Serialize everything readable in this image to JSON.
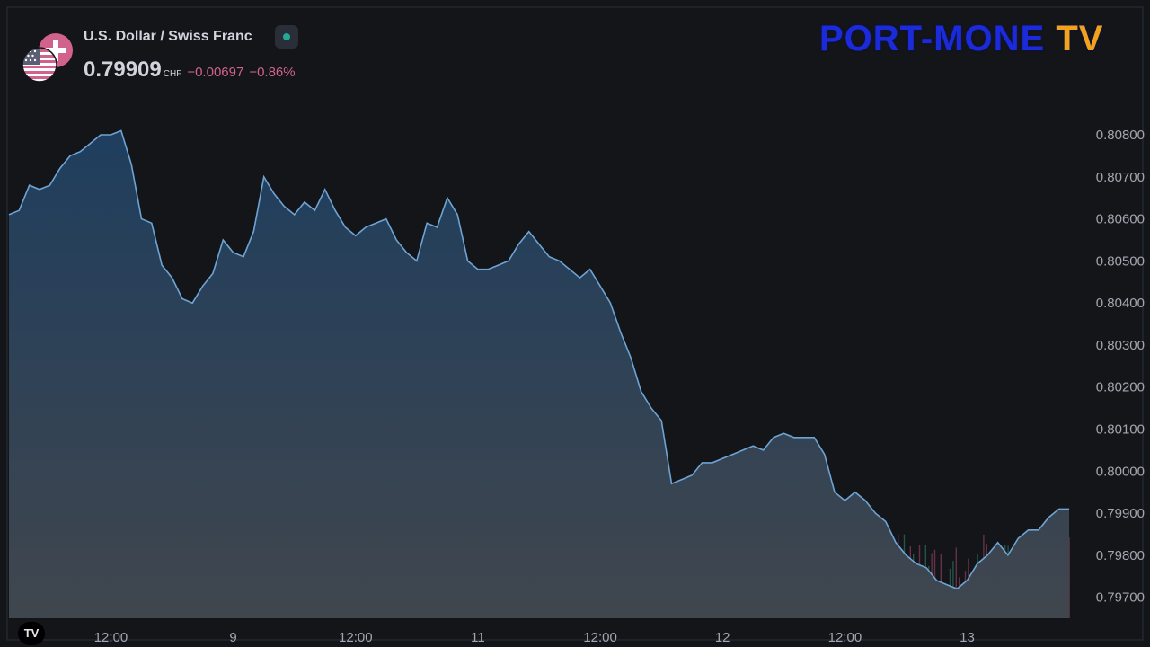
{
  "header": {
    "title": "U.S. Dollar / Swiss Franc",
    "price": "0.79909",
    "currency": "CHF",
    "change": "−0.00697",
    "change_pct": "−0.86%",
    "status": "market-open",
    "status_color": "#22ab94",
    "change_color": "#d0628c"
  },
  "brand": {
    "part1": "PORT-MONE",
    "part2": "TV"
  },
  "chart_data": {
    "type": "area",
    "series": [
      {
        "x": [
          "8 Sep 02:00",
          "8 Sep 03:00",
          "8 Sep 04:00",
          "8 Sep 05:00",
          "8 Sep 06:00",
          "8 Sep 07:00",
          "8 Sep 08:00",
          "8 Sep 09:00",
          "8 Sep 10:00",
          "8 Sep 11:00",
          "8 Sep 12:00",
          "8 Sep 13:00",
          "8 Sep 14:00",
          "8 Sep 15:00",
          "8 Sep 16:00",
          "8 Sep 17:00",
          "8 Sep 18:00",
          "8 Sep 19:00",
          "8 Sep 20:00",
          "8 Sep 21:00",
          "8 Sep 22:00",
          "8 Sep 23:00",
          "9 Sep 00:00",
          "9 Sep 01:00",
          "9 Sep 02:00",
          "9 Sep 03:00",
          "9 Sep 04:00",
          "9 Sep 05:00",
          "9 Sep 06:00",
          "9 Sep 07:00",
          "9 Sep 08:00",
          "9 Sep 09:00",
          "9 Sep 10:00",
          "9 Sep 11:00",
          "9 Sep 12:00",
          "9 Sep 13:00",
          "9 Sep 14:00",
          "9 Sep 15:00",
          "9 Sep 16:00",
          "9 Sep 17:00",
          "9 Sep 18:00",
          "9 Sep 19:00",
          "9 Sep 20:00",
          "9 Sep 21:00",
          "9 Sep 22:00",
          "9 Sep 23:00",
          "11 Sep 00:00",
          "11 Sep 01:00",
          "11 Sep 02:00",
          "11 Sep 03:00",
          "11 Sep 04:00",
          "11 Sep 05:00",
          "11 Sep 06:00",
          "11 Sep 07:00",
          "11 Sep 08:00",
          "11 Sep 09:00",
          "11 Sep 10:00",
          "11 Sep 11:00",
          "11 Sep 12:00",
          "11 Sep 13:00",
          "11 Sep 14:00",
          "11 Sep 15:00",
          "11 Sep 16:00",
          "11 Sep 17:00",
          "11 Sep 18:00",
          "11 Sep 19:00",
          "11 Sep 20:00",
          "11 Sep 21:00",
          "11 Sep 22:00",
          "11 Sep 23:00",
          "12 Sep 00:00",
          "12 Sep 01:00",
          "12 Sep 02:00",
          "12 Sep 03:00",
          "12 Sep 04:00",
          "12 Sep 05:00",
          "12 Sep 06:00",
          "12 Sep 07:00",
          "12 Sep 08:00",
          "12 Sep 09:00",
          "12 Sep 10:00",
          "12 Sep 11:00",
          "12 Sep 12:00",
          "12 Sep 13:00",
          "12 Sep 14:00",
          "12 Sep 15:00",
          "12 Sep 16:00",
          "12 Sep 17:00",
          "12 Sep 18:00",
          "12 Sep 19:00",
          "12 Sep 20:00",
          "12 Sep 21:00",
          "12 Sep 22:00",
          "12 Sep 23:00",
          "13 Sep 00:00",
          "13 Sep 01:00",
          "13 Sep 02:00",
          "13 Sep 03:00",
          "13 Sep 04:00",
          "13 Sep 05:00",
          "13 Sep 06:00",
          "13 Sep 07:00",
          "13 Sep 08:00",
          "13 Sep 09:00",
          "13 Sep 10:00"
        ],
        "values": [
          0.8061,
          0.8062,
          0.8068,
          0.8067,
          0.8068,
          0.8072,
          0.8075,
          0.8076,
          0.8078,
          0.808,
          0.808,
          0.8081,
          0.8073,
          0.806,
          0.8059,
          0.8049,
          0.8046,
          0.8041,
          0.804,
          0.8044,
          0.8047,
          0.8055,
          0.8052,
          0.8051,
          0.8057,
          0.807,
          0.8066,
          0.8063,
          0.8061,
          0.8064,
          0.8062,
          0.8067,
          0.8062,
          0.8058,
          0.8056,
          0.8058,
          0.8059,
          0.806,
          0.8055,
          0.8052,
          0.805,
          0.8059,
          0.8058,
          0.8065,
          0.8061,
          0.805,
          0.8048,
          0.8048,
          0.8049,
          0.805,
          0.8054,
          0.8057,
          0.8054,
          0.8051,
          0.805,
          0.8048,
          0.8046,
          0.8048,
          0.8044,
          0.804,
          0.8033,
          0.8027,
          0.8019,
          0.8015,
          0.8012,
          0.7997,
          0.7998,
          0.7999,
          0.8002,
          0.8002,
          0.8003,
          0.8004,
          0.8005,
          0.8006,
          0.8005,
          0.8008,
          0.8009,
          0.8008,
          0.8008,
          0.8008,
          0.8004,
          0.7995,
          0.7993,
          0.7995,
          0.7993,
          0.799,
          0.7988,
          0.7983,
          0.798,
          0.7978,
          0.7977,
          0.7974,
          0.7973,
          0.7972,
          0.7974,
          0.7978,
          0.798,
          0.7983,
          0.798,
          0.7984,
          0.7986,
          0.7986,
          0.7989,
          0.7991,
          0.7991
        ]
      }
    ],
    "yticks": [
      "0.80800",
      "0.80700",
      "0.80600",
      "0.80500",
      "0.80400",
      "0.80300",
      "0.80200",
      "0.80100",
      "0.80000",
      "0.79900",
      "0.79800",
      "0.79700"
    ],
    "ylim": [
      0.7965,
      0.8083
    ],
    "xticks": [
      {
        "label": "12:00",
        "x": "8 Sep 12:00"
      },
      {
        "label": "9",
        "x": "9 Sep 00:00"
      },
      {
        "label": "12:00",
        "x": "9 Sep 12:00"
      },
      {
        "label": "11",
        "x": "11 Sep 00:00"
      },
      {
        "label": "12:00",
        "x": "11 Sep 12:00"
      },
      {
        "label": "12",
        "x": "12 Sep 00:00"
      },
      {
        "label": "12:00",
        "x": "12 Sep 12:00"
      },
      {
        "label": "13",
        "x": "13 Sep 00:00"
      }
    ],
    "grid": false,
    "line_color": "#6ea4d4",
    "fill_top_color": "#1f3e5e",
    "fill_bottom_color": "#40464e",
    "volume_up_color": "#2f8a6d",
    "volume_down_color": "#a84b6e"
  }
}
